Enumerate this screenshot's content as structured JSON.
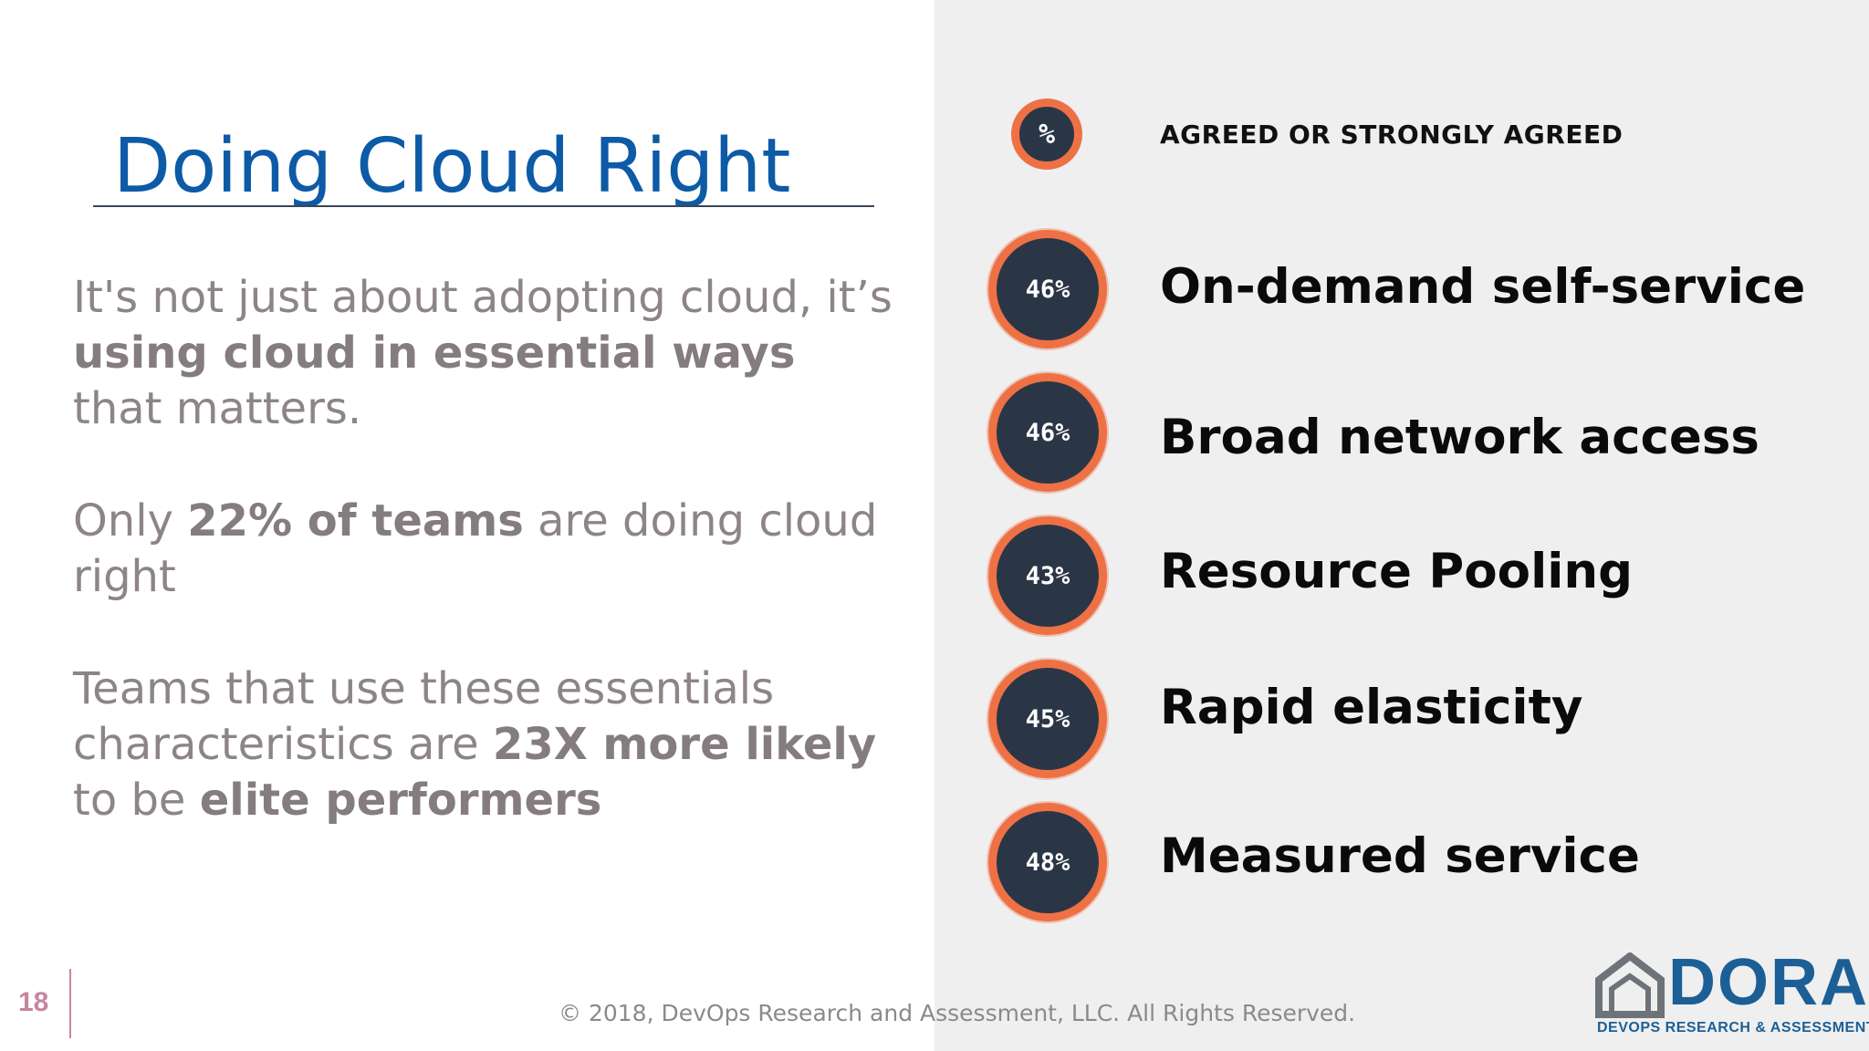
{
  "slide": {
    "title": "Doing Cloud Right",
    "paragraphs": {
      "p1": {
        "t1": "It's not just about adopting cloud, it’s ",
        "b1": "using cloud in essential ways",
        "t2": " that matters."
      },
      "p2": {
        "t1": "Only ",
        "b1": "22% of teams",
        "t2": " are doing cloud right"
      },
      "p3": {
        "t1": "Teams that use these essentials characteristics are ",
        "b1": "23X more likely",
        "t2": " to be ",
        "b2": "elite performers"
      }
    },
    "legend": {
      "symbol": "%",
      "label": "AGREED OR STRONGLY AGREED"
    },
    "stats": [
      {
        "value": "46%",
        "label": "On-demand self-service"
      },
      {
        "value": "46%",
        "label": "Broad network access"
      },
      {
        "value": "43%",
        "label": "Resource Pooling"
      },
      {
        "value": "45%",
        "label": "Rapid elasticity"
      },
      {
        "value": "48%",
        "label": "Measured service"
      }
    ],
    "slide_number": "18",
    "copyright": "© 2018, DevOps Research and Assessment, LLC. All Rights Reserved.",
    "logo": {
      "name": "DORA",
      "subtitle": "DEVOPS RESEARCH & ASSESSMENT"
    },
    "colors": {
      "title": "#0d5aa7",
      "accent_ring": "#ee7145",
      "circle_fill": "#2a3646",
      "logo": "#1c5f96"
    }
  }
}
